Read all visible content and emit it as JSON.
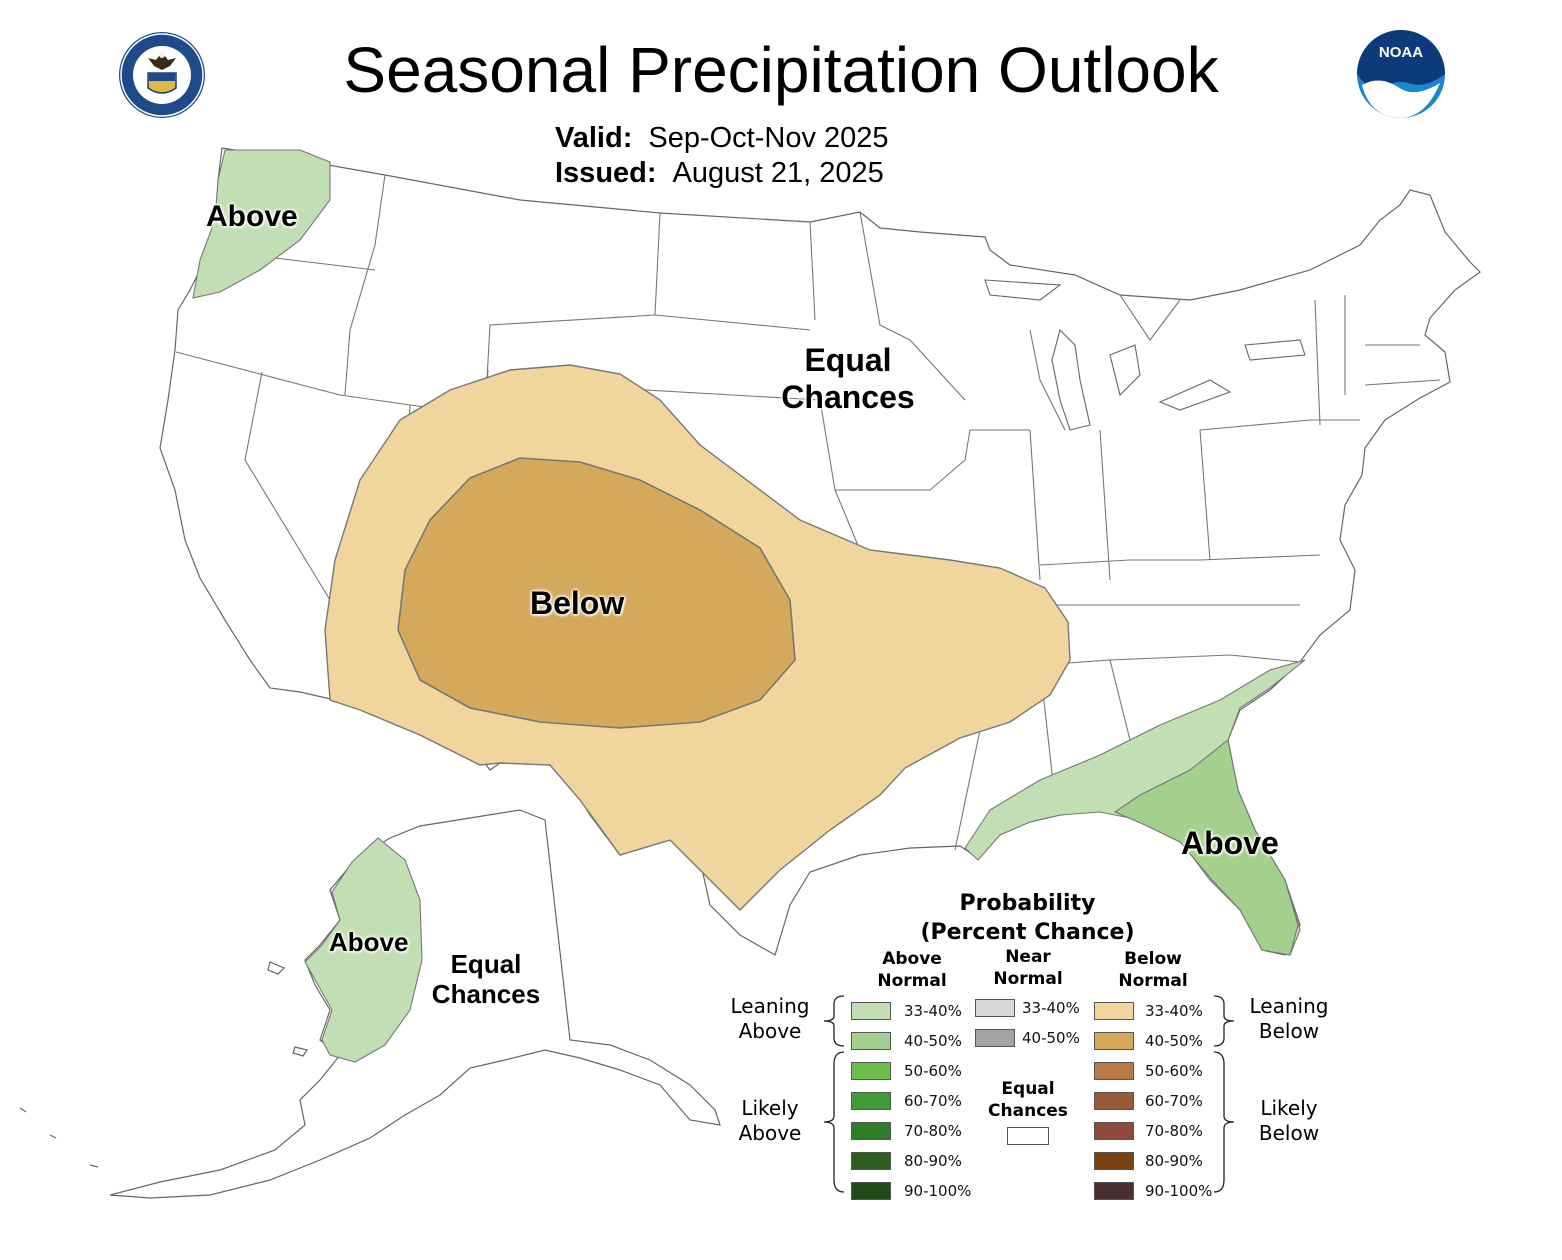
{
  "title": "Seasonal Precipitation Outlook",
  "valid": {
    "label": "Valid:",
    "value": "Sep-Oct-Nov 2025"
  },
  "issued": {
    "label": "Issued:",
    "value": "August 21, 2025"
  },
  "logos": {
    "left": {
      "icon": "department-of-commerce-seal-icon",
      "ring_text": "DEPARTMENT OF COMMERCE · UNITED STATES OF AMERICA"
    },
    "right": {
      "icon": "noaa-logo-icon",
      "text": "NOAA"
    }
  },
  "map_labels": {
    "pacific_northwest": "Above",
    "central_us_1": "Equal",
    "central_us_2": "Chances",
    "southwest": "Below",
    "southeast": "Above",
    "alaska_west": "Above",
    "alaska_1": "Equal",
    "alaska_2": "Chances"
  },
  "legend": {
    "title_1": "Probability",
    "title_2": "(Percent Chance)",
    "above_head_1": "Above",
    "above_head_2": "Normal",
    "near_head_1": "Near",
    "near_head_2": "Normal",
    "below_head_1": "Below",
    "below_head_2": "Normal",
    "leaning_above_1": "Leaning",
    "leaning_above_2": "Above",
    "likely_above_1": "Likely",
    "likely_above_2": "Above",
    "leaning_below_1": "Leaning",
    "leaning_below_2": "Below",
    "likely_below_1": "Likely",
    "likely_below_2": "Below",
    "equal_1": "Equal",
    "equal_2": "Chances",
    "above": [
      {
        "label": "33-40%",
        "color": "#c2dfb3"
      },
      {
        "label": "40-50%",
        "color": "#a3d08c"
      },
      {
        "label": "50-60%",
        "color": "#6abf4b"
      },
      {
        "label": "60-70%",
        "color": "#3f9b34"
      },
      {
        "label": "70-80%",
        "color": "#2e7d27"
      },
      {
        "label": "80-90%",
        "color": "#2b5e1f"
      },
      {
        "label": "90-100%",
        "color": "#224a18"
      }
    ],
    "near": [
      {
        "label": "33-40%",
        "color": "#d7d7d7"
      },
      {
        "label": "40-50%",
        "color": "#a3a3a3"
      }
    ],
    "below": [
      {
        "label": "33-40%",
        "color": "#f0d69c"
      },
      {
        "label": "40-50%",
        "color": "#d4a95c"
      },
      {
        "label": "50-60%",
        "color": "#b87b47"
      },
      {
        "label": "60-70%",
        "color": "#9a5a39"
      },
      {
        "label": "70-80%",
        "color": "#8e4a3a"
      },
      {
        "label": "80-90%",
        "color": "#7a4213"
      },
      {
        "label": "90-100%",
        "color": "#4a2e2b"
      }
    ],
    "equal_color": "#ffffff"
  }
}
